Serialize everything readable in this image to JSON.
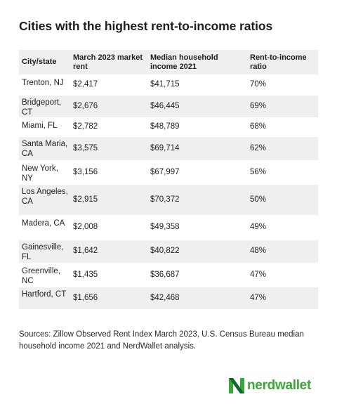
{
  "title": "Cities with the highest rent-to-income ratios",
  "table": {
    "headers": [
      "City/state",
      "March 2023 market rent",
      "Median household income 2021",
      "Rent-to-income ratio"
    ],
    "rows": [
      [
        "Trenton, NJ",
        "$2,417",
        "$41,715",
        "70%"
      ],
      [
        "Bridgeport, CT",
        "$2,676",
        "$46,445",
        "69%"
      ],
      [
        "Miami, FL",
        "$2,782",
        "$48,789",
        "68%"
      ],
      [
        "Santa Maria, CA",
        "$3,575",
        "$69,714",
        "62%"
      ],
      [
        "New York, NY",
        "$3,156",
        "$67,997",
        "56%"
      ],
      [
        "Los Angeles, CA",
        "$2,915",
        "$70,372",
        "50%"
      ],
      [
        "Madera, CA",
        "$2,008",
        "$49,358",
        "49%"
      ],
      [
        "Gainesville, FL",
        "$1,642",
        "$40,822",
        "48%"
      ],
      [
        "Greenville, NC",
        "$1,435",
        "$36,687",
        "47%"
      ],
      [
        "Hartford, CT",
        "$1,656",
        "$42,468",
        "47%"
      ]
    ]
  },
  "source": "Sources: Zillow Observed Rent Index March 2023, U.S. Census Bureau median household income 2021 and NerdWallet analysis.",
  "brand": {
    "name": "nerdwallet",
    "logo_icon": "nerdwallet-n-icon",
    "color": "#3da83a"
  }
}
